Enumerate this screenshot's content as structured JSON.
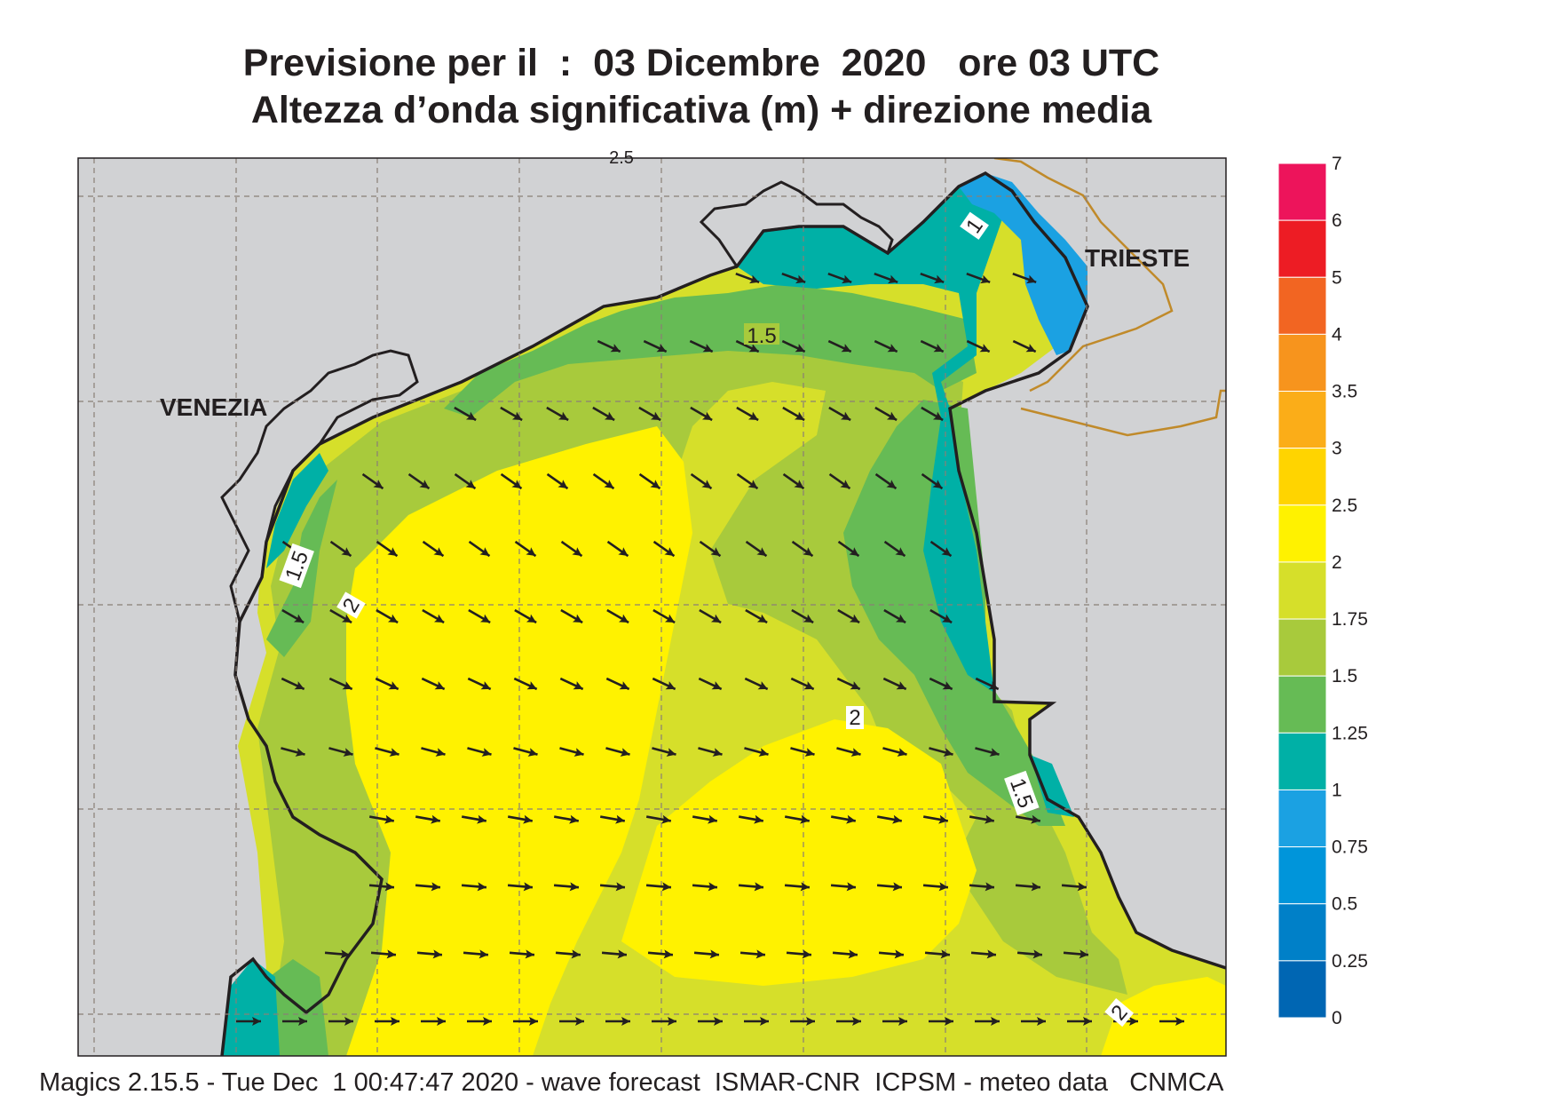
{
  "title": {
    "line1": "Previsione per il  :  03 Dicembre  2020   ore 03 UTC",
    "line2": "Altezza d’onda significativa (m) + direzione media"
  },
  "map": {
    "places": {
      "venezia": "VENEZIA",
      "trieste": "TRIESTE"
    },
    "contour_labels": [
      "1",
      "1.5",
      "1.5",
      "2",
      "2",
      "1.5",
      "2",
      "2.5"
    ],
    "colors": {
      "land": "#d1d2d4",
      "c1_125": "#00b0a6",
      "c125_15": "#66bb55",
      "c15_175": "#a8ca3c",
      "c175_2": "#d6df2a",
      "c2_25": "#fff200",
      "c075_1": "#1ba1e2",
      "coast": "#231f20",
      "border": "#c08a2a",
      "grid": "#8a7f76",
      "arrow": "#231f20"
    }
  },
  "legend": {
    "labels": [
      "7",
      "6",
      "5",
      "4",
      "3.5",
      "3",
      "2.5",
      "2",
      "1.75",
      "1.5",
      "1.25",
      "1",
      "0.75",
      "0.5",
      "0.25",
      "0"
    ],
    "colors": [
      "#ed145b",
      "#ed1c24",
      "#f26522",
      "#f7941d",
      "#fbad18",
      "#ffd400",
      "#fff200",
      "#d6df2a",
      "#a8ca3c",
      "#66bb55",
      "#00b0a6",
      "#1ba1e2",
      "#0095da",
      "#0080c8",
      "#0066b3"
    ]
  },
  "footer": "Magics 2.15.5 - Tue Dec  1 00:47:47 2020 - wave forecast  ISMAR-CNR  ICPSM - meteo data   CNMCA"
}
